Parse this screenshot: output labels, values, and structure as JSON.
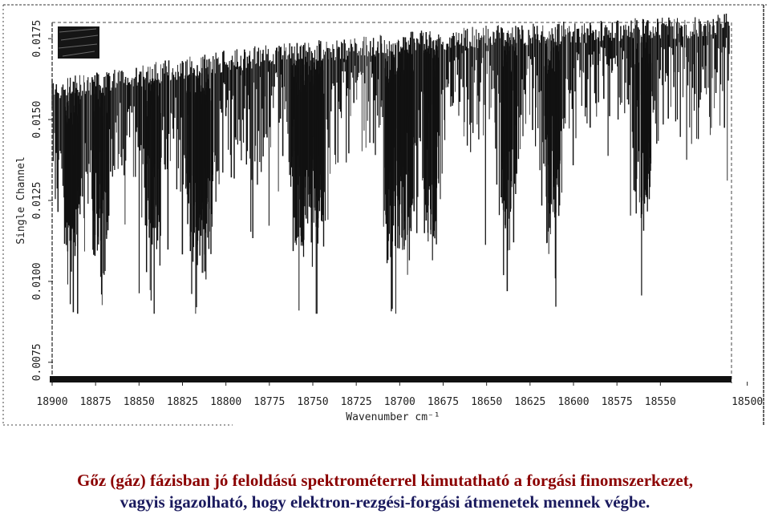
{
  "chart_data": {
    "type": "line",
    "title": "",
    "xlabel": "Wavenumber  cm⁻¹",
    "ylabel": "Single Channel",
    "x_ticks": [
      18900,
      18875,
      18850,
      18825,
      18800,
      18775,
      18750,
      18725,
      18700,
      18675,
      18650,
      18625,
      18600,
      18575,
      18550,
      18500
    ],
    "x_tick_labels": [
      "18900",
      "18875",
      "18850",
      "18825",
      "18800",
      "18775",
      "18750",
      "18725",
      "18700",
      "18675",
      "18650",
      "18625",
      "18600",
      "18575",
      "18550",
      "18500"
    ],
    "y_ticks": [
      0.0075,
      0.01,
      0.0125,
      0.015,
      0.0175
    ],
    "y_tick_labels": [
      "0.0075",
      "0.0100",
      "0.0125",
      "0.0150",
      "0.0175"
    ],
    "xlim": [
      18900,
      18510
    ],
    "ylim": [
      0.007,
      0.018
    ],
    "x_axis_reversed": true,
    "grid": false,
    "series": [
      {
        "style": "dense absorption lines",
        "baseline": [
          [
            18900,
            0.0158
          ],
          [
            18860,
            0.0161
          ],
          [
            18820,
            0.0165
          ],
          [
            18780,
            0.0168
          ],
          [
            18740,
            0.017
          ],
          [
            18700,
            0.0172
          ],
          [
            18660,
            0.0174
          ],
          [
            18620,
            0.0175
          ],
          [
            18580,
            0.0176
          ],
          [
            18540,
            0.0177
          ],
          [
            18510,
            0.0178
          ]
        ],
        "dips": [
          [
            18888,
            0.0112
          ],
          [
            18872,
            0.0118
          ],
          [
            18842,
            0.0115
          ],
          [
            18818,
            0.011
          ],
          [
            18812,
            0.0112
          ],
          [
            18758,
            0.0112
          ],
          [
            18748,
            0.0114
          ],
          [
            18704,
            0.0107
          ],
          [
            18696,
            0.0112
          ],
          [
            18682,
            0.0114
          ],
          [
            18637,
            0.0118
          ],
          [
            18612,
            0.0117
          ],
          [
            18560,
            0.0121
          ]
        ]
      }
    ]
  },
  "colors": {
    "ink": "#111111",
    "caption_line1": "#8b0000",
    "caption_line2": "#1a1a5e"
  },
  "caption": {
    "line1": "Gőz (gáz) fázisban jó feloldású spektrométerrel kimutatható a forgási finomszerkezet,",
    "line2": "vagyis igazolható, hogy elektron-rezgési-forgási átmenetek mennek végbe."
  }
}
